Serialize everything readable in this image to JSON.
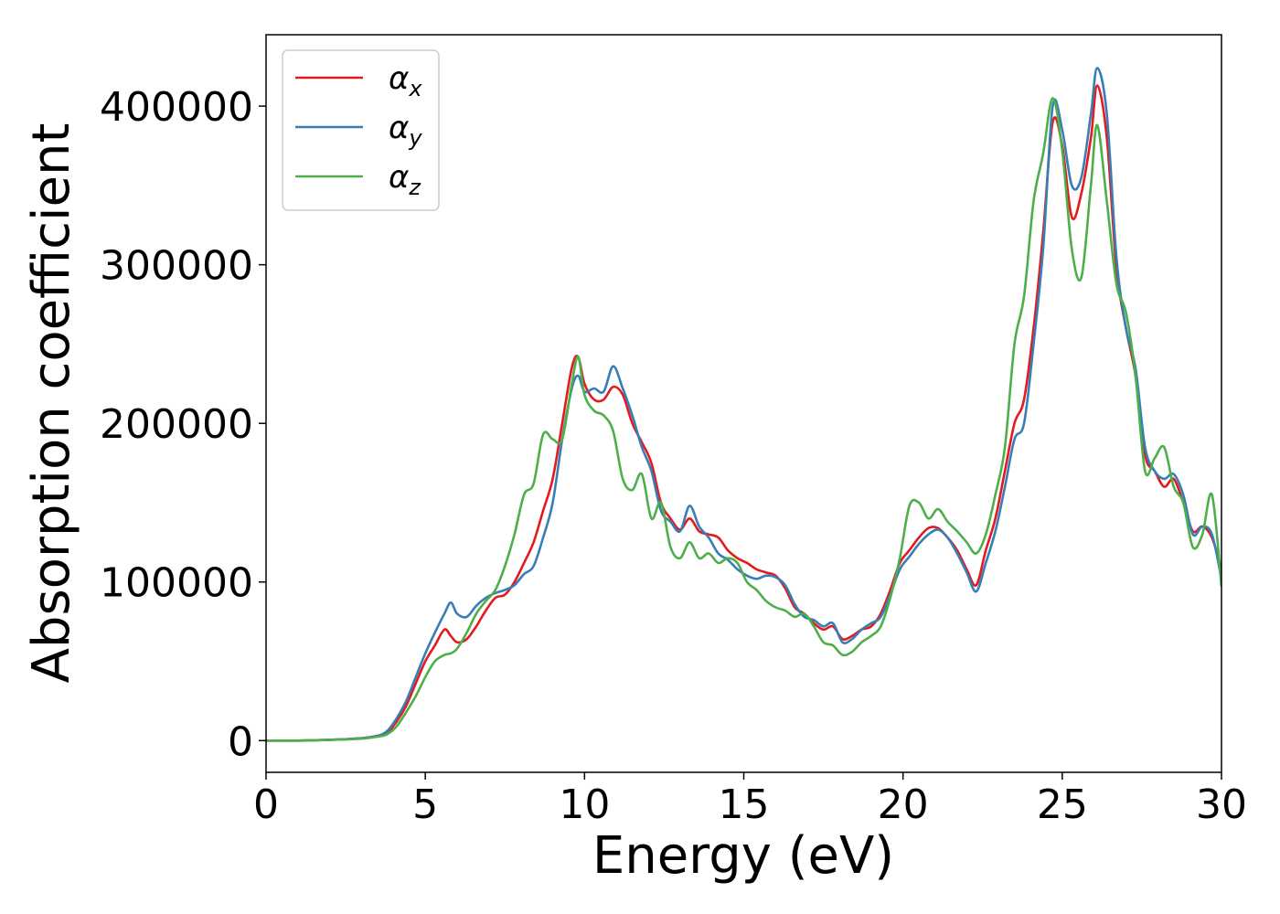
{
  "chart_data": {
    "type": "line",
    "title": "",
    "xlabel": "Energy (eV)",
    "ylabel": "Absorption coefficient",
    "xlim": [
      0,
      30
    ],
    "ylim": [
      -20000,
      445000
    ],
    "xticks": [
      0,
      5,
      10,
      15,
      20,
      25,
      30
    ],
    "xtick_labels": [
      "0",
      "5",
      "10",
      "15",
      "20",
      "25",
      "30"
    ],
    "yticks": [
      0,
      100000,
      200000,
      300000,
      400000
    ],
    "ytick_labels": [
      "0",
      "100000",
      "200000",
      "300000",
      "400000"
    ],
    "grid": false,
    "legend_position": "upper-left",
    "series": [
      {
        "name": "α",
        "name_sub": "x",
        "color": "#e41a1c",
        "x": [
          0,
          1,
          2,
          3,
          3.5,
          3.8,
          4.1,
          4.4,
          4.7,
          5.0,
          5.3,
          5.6,
          5.8,
          6.0,
          6.3,
          6.6,
          6.9,
          7.2,
          7.5,
          7.8,
          8.1,
          8.4,
          8.7,
          9.0,
          9.3,
          9.6,
          9.8,
          10.0,
          10.3,
          10.6,
          10.9,
          11.2,
          11.5,
          11.8,
          12.1,
          12.4,
          12.7,
          13.0,
          13.3,
          13.6,
          13.9,
          14.2,
          14.5,
          14.8,
          15.1,
          15.4,
          15.7,
          16.0,
          16.3,
          16.6,
          16.9,
          17.2,
          17.5,
          17.8,
          18.1,
          18.4,
          18.7,
          19.0,
          19.3,
          19.6,
          19.9,
          20.2,
          20.5,
          20.8,
          21.1,
          21.4,
          21.7,
          22.0,
          22.3,
          22.6,
          22.9,
          23.2,
          23.5,
          23.8,
          24.1,
          24.4,
          24.7,
          25.0,
          25.3,
          25.6,
          25.9,
          26.1,
          26.4,
          26.7,
          27.0,
          27.3,
          27.6,
          27.9,
          28.2,
          28.5,
          28.8,
          29.1,
          29.4,
          29.7,
          30.0
        ],
        "values": [
          0,
          0,
          500,
          1500,
          3000,
          5000,
          12000,
          22000,
          36000,
          50000,
          60000,
          70000,
          66000,
          62000,
          64000,
          72000,
          82000,
          90000,
          92000,
          100000,
          112000,
          125000,
          145000,
          165000,
          200000,
          235000,
          242000,
          225000,
          215000,
          215000,
          223000,
          218000,
          200000,
          188000,
          175000,
          150000,
          140000,
          133000,
          140000,
          132000,
          130000,
          128000,
          120000,
          115000,
          112000,
          108000,
          106000,
          104000,
          96000,
          84000,
          80000,
          74000,
          70000,
          72000,
          64000,
          66000,
          70000,
          72000,
          80000,
          95000,
          112000,
          120000,
          128000,
          134000,
          134000,
          128000,
          120000,
          108000,
          98000,
          120000,
          140000,
          170000,
          200000,
          215000,
          260000,
          320000,
          390000,
          375000,
          330000,
          345000,
          380000,
          413000,
          380000,
          298000,
          260000,
          230000,
          180000,
          170000,
          160000,
          165000,
          150000,
          132000,
          135000,
          128000,
          108000
        ]
      },
      {
        "name": "α",
        "name_sub": "y",
        "color": "#377eb8",
        "x": [
          0,
          1,
          2,
          3,
          3.5,
          3.8,
          4.1,
          4.4,
          4.7,
          5.0,
          5.3,
          5.6,
          5.8,
          6.0,
          6.3,
          6.6,
          6.9,
          7.2,
          7.5,
          7.8,
          8.1,
          8.4,
          8.7,
          9.0,
          9.3,
          9.6,
          9.8,
          10.0,
          10.3,
          10.6,
          10.9,
          11.2,
          11.5,
          11.8,
          12.1,
          12.4,
          12.7,
          13.0,
          13.3,
          13.6,
          13.9,
          14.2,
          14.5,
          14.8,
          15.1,
          15.4,
          15.7,
          16.0,
          16.3,
          16.6,
          16.9,
          17.2,
          17.5,
          17.8,
          18.1,
          18.4,
          18.7,
          19.0,
          19.3,
          19.6,
          19.9,
          20.2,
          20.5,
          20.8,
          21.1,
          21.4,
          21.7,
          22.0,
          22.3,
          22.6,
          22.9,
          23.2,
          23.5,
          23.8,
          24.1,
          24.4,
          24.7,
          25.0,
          25.3,
          25.6,
          25.9,
          26.1,
          26.4,
          26.7,
          27.0,
          27.3,
          27.6,
          27.9,
          28.2,
          28.5,
          28.8,
          29.1,
          29.4,
          29.7,
          30.0
        ],
        "values": [
          0,
          0,
          500,
          1500,
          3000,
          6000,
          14000,
          25000,
          40000,
          55000,
          68000,
          80000,
          87000,
          80000,
          78000,
          85000,
          90000,
          93000,
          95000,
          98000,
          105000,
          110000,
          128000,
          150000,
          190000,
          222000,
          230000,
          220000,
          222000,
          220000,
          236000,
          222000,
          205000,
          185000,
          170000,
          145000,
          138000,
          132000,
          148000,
          135000,
          128000,
          118000,
          114000,
          108000,
          104000,
          102000,
          104000,
          103000,
          98000,
          86000,
          78000,
          76000,
          72000,
          74000,
          62000,
          64000,
          70000,
          74000,
          78000,
          92000,
          108000,
          116000,
          124000,
          130000,
          133000,
          128000,
          118000,
          106000,
          94000,
          112000,
          132000,
          160000,
          190000,
          200000,
          250000,
          310000,
          400000,
          385000,
          350000,
          355000,
          395000,
          424000,
          395000,
          305000,
          260000,
          235000,
          185000,
          170000,
          165000,
          168000,
          155000,
          130000,
          135000,
          130000,
          102000
        ]
      },
      {
        "name": "α",
        "name_sub": "z",
        "color": "#4daf4a",
        "x": [
          0,
          1,
          2,
          3,
          3.5,
          3.8,
          4.1,
          4.4,
          4.7,
          5.0,
          5.3,
          5.6,
          5.8,
          6.0,
          6.3,
          6.6,
          6.9,
          7.2,
          7.5,
          7.8,
          8.1,
          8.4,
          8.7,
          9.0,
          9.3,
          9.6,
          9.8,
          10.0,
          10.3,
          10.6,
          10.9,
          11.2,
          11.5,
          11.8,
          12.1,
          12.4,
          12.7,
          13.0,
          13.3,
          13.6,
          13.9,
          14.2,
          14.5,
          14.8,
          15.1,
          15.4,
          15.7,
          16.0,
          16.3,
          16.6,
          16.9,
          17.2,
          17.5,
          17.8,
          18.1,
          18.4,
          18.7,
          19.0,
          19.3,
          19.6,
          19.9,
          20.2,
          20.5,
          20.8,
          21.1,
          21.4,
          21.7,
          22.0,
          22.3,
          22.6,
          22.9,
          23.2,
          23.5,
          23.8,
          24.1,
          24.4,
          24.7,
          25.0,
          25.3,
          25.6,
          25.9,
          26.1,
          26.4,
          26.7,
          27.0,
          27.3,
          27.6,
          27.9,
          28.2,
          28.5,
          28.8,
          29.1,
          29.4,
          29.7,
          30.0
        ],
        "values": [
          0,
          0,
          500,
          1200,
          2500,
          4000,
          9000,
          18000,
          28000,
          40000,
          50000,
          54000,
          55000,
          58000,
          68000,
          80000,
          88000,
          95000,
          110000,
          130000,
          155000,
          162000,
          193000,
          190000,
          190000,
          225000,
          242000,
          218000,
          208000,
          205000,
          195000,
          165000,
          158000,
          168000,
          140000,
          150000,
          122000,
          115000,
          125000,
          115000,
          118000,
          112000,
          115000,
          112000,
          100000,
          95000,
          88000,
          84000,
          82000,
          78000,
          80000,
          72000,
          62000,
          60000,
          54000,
          56000,
          62000,
          66000,
          72000,
          90000,
          115000,
          148000,
          150000,
          140000,
          146000,
          138000,
          132000,
          125000,
          118000,
          130000,
          155000,
          185000,
          250000,
          280000,
          340000,
          370000,
          405000,
          372000,
          310000,
          292000,
          350000,
          388000,
          340000,
          288000,
          270000,
          230000,
          170000,
          178000,
          185000,
          160000,
          150000,
          122000,
          130000,
          155000,
          97000
        ]
      }
    ]
  }
}
